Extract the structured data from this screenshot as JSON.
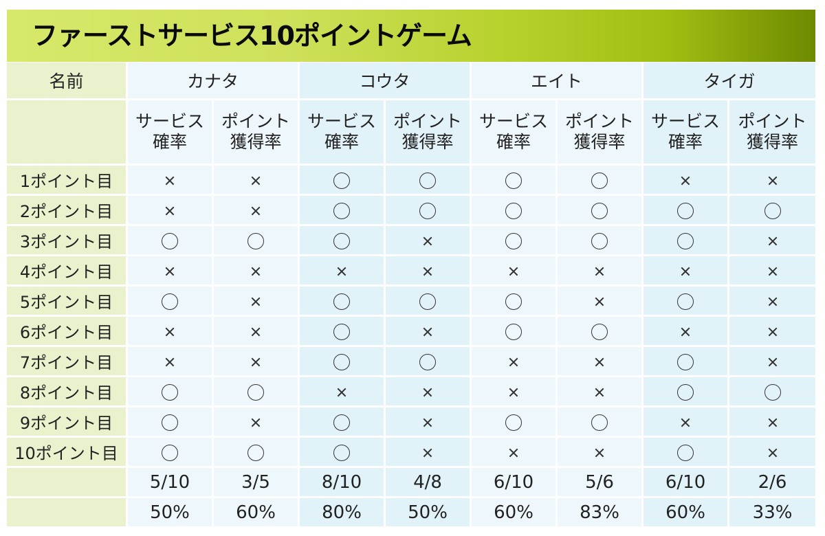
{
  "title": "ファーストサービス10ポイントゲーム",
  "header": {
    "name_label": "名前",
    "players": [
      "カナタ",
      "コウタ",
      "エイト",
      "タイガ"
    ],
    "sub_headers": [
      "サービス確率",
      "ポイント獲得率"
    ]
  },
  "colors": {
    "title_bar_start": "#d8e86a",
    "title_bar_end": "#6e8a00",
    "row_label_bg": "#e9f1cd",
    "cell_light": "#eef7fb",
    "cell_blue": "#e1f2f9"
  },
  "rows": [
    {
      "label": "1ポイント目",
      "marks": [
        "×",
        "×",
        "〇",
        "〇",
        "〇",
        "〇",
        "×",
        "×"
      ]
    },
    {
      "label": "2ポイント目",
      "marks": [
        "×",
        "×",
        "〇",
        "〇",
        "〇",
        "〇",
        "〇",
        "〇"
      ]
    },
    {
      "label": "3ポイント目",
      "marks": [
        "〇",
        "〇",
        "〇",
        "×",
        "〇",
        "〇",
        "〇",
        "×"
      ]
    },
    {
      "label": "4ポイント目",
      "marks": [
        "×",
        "×",
        "×",
        "×",
        "×",
        "×",
        "×",
        "×"
      ]
    },
    {
      "label": "5ポイント目",
      "marks": [
        "〇",
        "×",
        "〇",
        "〇",
        "〇",
        "×",
        "〇",
        "×"
      ]
    },
    {
      "label": "6ポイント目",
      "marks": [
        "×",
        "×",
        "〇",
        "×",
        "〇",
        "〇",
        "×",
        "×"
      ]
    },
    {
      "label": "7ポイント目",
      "marks": [
        "×",
        "×",
        "〇",
        "〇",
        "×",
        "×",
        "〇",
        "×"
      ]
    },
    {
      "label": "8ポイント目",
      "marks": [
        "〇",
        "〇",
        "×",
        "×",
        "×",
        "×",
        "〇",
        "〇"
      ]
    },
    {
      "label": "9ポイント目",
      "marks": [
        "〇",
        "×",
        "〇",
        "×",
        "〇",
        "〇",
        "×",
        "×"
      ]
    },
    {
      "label": "10ポイント目",
      "marks": [
        "〇",
        "〇",
        "〇",
        "×",
        "×",
        "×",
        "〇",
        "×"
      ]
    }
  ],
  "totals": {
    "fractions": [
      "5/10",
      "3/5",
      "8/10",
      "4/8",
      "6/10",
      "5/6",
      "6/10",
      "2/6"
    ],
    "percentages": [
      "50%",
      "60%",
      "80%",
      "50%",
      "60%",
      "83%",
      "60%",
      "33%"
    ]
  }
}
